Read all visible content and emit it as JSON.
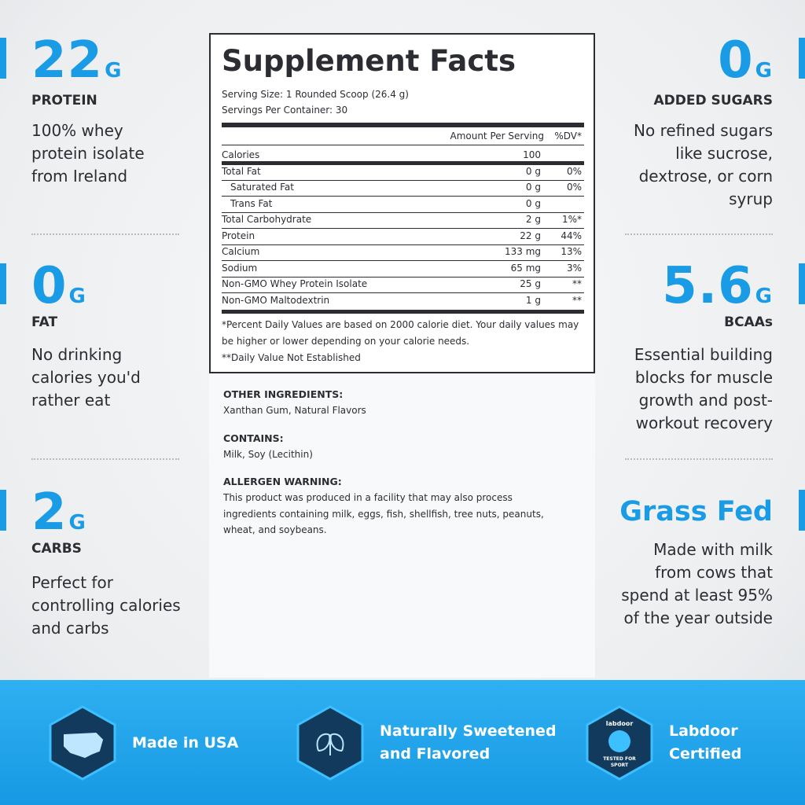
{
  "supplement_facts": {
    "title": "Supplement Facts",
    "serving_size": "Serving Size: 1 Rounded Scoop (26.4 g)",
    "servings_per_container": "Servings Per Container: 30",
    "amount_header": "Amount Per Serving",
    "dv_header": "%DV*",
    "rows": [
      {
        "name": "Calories",
        "amount": "100"
      },
      {
        "name": "Total Fat",
        "amount": "0 g",
        "dv": "0%"
      },
      {
        "name": "Saturated Fat",
        "amount": "0 g",
        "dv": "0%",
        "indent": true
      },
      {
        "name": "Trans Fat",
        "amount": "0 g",
        "indent": true
      },
      {
        "name": "Total Carbohydrate",
        "amount": "2 g",
        "dv": "1%*"
      },
      {
        "name": "Protein",
        "amount": "22 g",
        "dv": "44%"
      },
      {
        "name": "Calcium",
        "amount": "133 mg",
        "dv": "13%"
      },
      {
        "name": "Sodium",
        "amount": "65 mg",
        "dv": "3%"
      },
      {
        "name": "Non-GMO Whey Protein Isolate",
        "amount": "25 g",
        "dv": "**"
      },
      {
        "name": "Non-GMO Maltodextrin",
        "amount": "1 g",
        "dv": "**"
      }
    ],
    "footnotes": [
      "*Percent Daily Values are based on 2000 calorie diet. Your daily values may",
      "be higher or lower depending on your calorie needs.",
      "**Daily Value Not Established"
    ]
  },
  "ingredients": [
    {
      "heading": "OTHER INGREDIENTS:",
      "lines": [
        "Xanthan Gum, Natural Flavors"
      ]
    },
    {
      "heading": "CONTAINS:",
      "lines": [
        "Milk, Soy (Lecithin)"
      ]
    },
    {
      "heading": "ALLERGEN WARNING:",
      "lines": [
        "This product was produced in a facility that may also process",
        "ingredients containing milk, eggs, fish, shellfish, tree nuts, peanuts,",
        "wheat, and soybeans."
      ]
    }
  ],
  "left_features": [
    {
      "value": "22",
      "unit": "G",
      "label": "PROTEIN",
      "lines": [
        "100% whey",
        "protein isolate",
        "from Ireland"
      ]
    },
    {
      "value": "0",
      "unit": "G",
      "label": "FAT",
      "lines": [
        "No drinking",
        "calories you'd",
        "rather eat"
      ]
    },
    {
      "value": "2",
      "unit": "G",
      "label": "CARBS",
      "lines": [
        "Perfect for",
        "controlling calories",
        "and carbs"
      ]
    }
  ],
  "right_features": [
    {
      "value": "0",
      "unit": "G",
      "label": "ADDED SUGARS",
      "lines": [
        "No refined sugars",
        "like sucrose,",
        "dextrose, or corn",
        "syrup"
      ]
    },
    {
      "value": "5.6",
      "unit": "G",
      "label": "BCAAs",
      "lines": [
        "Essential building",
        "blocks for muscle",
        "growth and post-",
        "workout recovery"
      ]
    },
    {
      "value": "Grass Fed",
      "lines": [
        "Made with milk",
        "from cows that",
        "spend at least 95%",
        "of the year outside"
      ]
    }
  ],
  "badges": [
    {
      "lines": [
        "Made in USA"
      ]
    },
    {
      "lines": [
        "Naturally Sweetened",
        "and Flavored"
      ]
    },
    {
      "lines": [
        "Labdoor",
        "Certified"
      ],
      "icon_lines": [
        "labdoor",
        "TESTED FOR",
        "SPORT"
      ]
    }
  ]
}
